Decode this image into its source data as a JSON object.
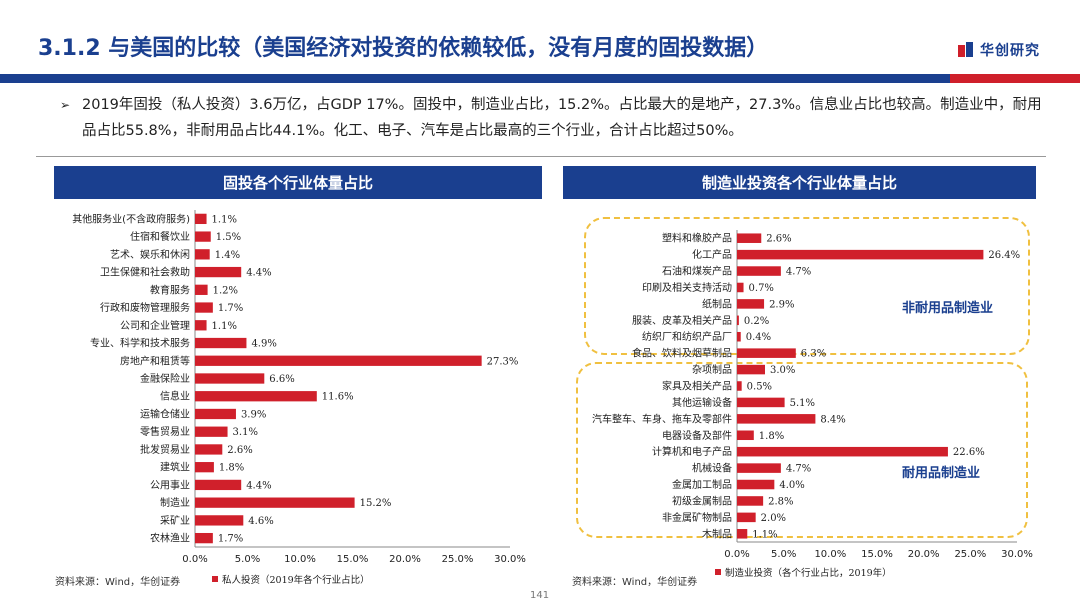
{
  "header": {
    "title": "3.1.2 与美国的比较（美国经济对投资的依赖较低，没有月度的固投数据）",
    "logo_text": "华创研究"
  },
  "summary": {
    "bullet": "➢",
    "text": "2019年固投（私人投资）3.6万亿，占GDP 17%。固投中，制造业占比，15.2%。占比最大的是地产，27.3%。信息业占比也较高。制造业中，耐用品占比55.8%，非耐用品占比44.1%。化工、电子、汽车是占比最高的三个行业，合计占比超过50%。"
  },
  "colors": {
    "primary": "#1a3f8f",
    "bar": "#d0202b",
    "box": "#f0c040"
  },
  "chart_data": [
    {
      "type": "bar",
      "orientation": "horizontal",
      "title": "固投各个行业体量占比",
      "categories": [
        "其他服务业(不含政府服务)",
        "住宿和餐饮业",
        "艺术、娱乐和休闲",
        "卫生保健和社会救助",
        "教育服务",
        "行政和废物管理服务",
        "公司和企业管理",
        "专业、科学和技术服务",
        "房地产和租赁等",
        "金融保险业",
        "信息业",
        "运输仓储业",
        "零售贸易业",
        "批发贸易业",
        "建筑业",
        "公用事业",
        "制造业",
        "采矿业",
        "农林渔业"
      ],
      "series": [
        {
          "name": "私人投资（2019年各个行业占比）",
          "values": [
            1.1,
            1.5,
            1.4,
            4.4,
            1.2,
            1.7,
            1.1,
            4.9,
            27.3,
            6.6,
            11.6,
            3.9,
            3.1,
            2.6,
            1.8,
            4.4,
            15.2,
            4.6,
            1.7
          ]
        }
      ],
      "value_labels": [
        "1.1%",
        "1.5%",
        "1.4%",
        "4.4%",
        "1.2%",
        "1.7%",
        "1.1%",
        "4.9%",
        "27.3%",
        "6.6%",
        "11.6%",
        "3.9%",
        "3.1%",
        "2.6%",
        "1.8%",
        "4.4%",
        "15.2%",
        "4.6%",
        "1.7%"
      ],
      "xlim": [
        0,
        30
      ],
      "xticks": [
        "0.0%",
        "5.0%",
        "10.0%",
        "15.0%",
        "20.0%",
        "25.0%",
        "30.0%"
      ],
      "legend": "bottom",
      "source": "资料来源：Wind，华创证券"
    },
    {
      "type": "bar",
      "orientation": "horizontal",
      "title": "制造业投资各个行业体量占比",
      "categories": [
        "塑料和橡胶产品",
        "化工产品",
        "石油和煤炭产品",
        "印刷及相关支持活动",
        "纸制品",
        "服装、皮革及相关产品",
        "纺织厂和纺织产品厂",
        "食品、饮料及烟草制品",
        "杂项制品",
        "家具及相关产品",
        "其他运输设备",
        "汽车整车、车身、拖车及零部件",
        "电器设备及部件",
        "计算机和电子产品",
        "机械设备",
        "金属加工制品",
        "初级金属制品",
        "非金属矿物制品",
        "木制品"
      ],
      "series": [
        {
          "name": "制造业投资（各个行业占比，2019年）",
          "values": [
            2.6,
            26.4,
            4.7,
            0.7,
            2.9,
            0.2,
            0.4,
            6.3,
            3.0,
            0.5,
            5.1,
            8.4,
            1.8,
            22.6,
            4.7,
            4.0,
            2.8,
            2.0,
            1.1
          ]
        }
      ],
      "value_labels": [
        "2.6%",
        "26.4%",
        "4.7%",
        "0.7%",
        "2.9%",
        "0.2%",
        "0.4%",
        "6.3%",
        "3.0%",
        "0.5%",
        "5.1%",
        "8.4%",
        "1.8%",
        "22.6%",
        "4.7%",
        "4.0%",
        "2.8%",
        "2.0%",
        "1.1%"
      ],
      "xlim": [
        0,
        30
      ],
      "xticks": [
        "0.0%",
        "5.0%",
        "10.0%",
        "15.0%",
        "20.0%",
        "25.0%",
        "30.0%"
      ],
      "groups": [
        {
          "label": "非耐用品制造业",
          "from": 0,
          "to": 7
        },
        {
          "label": "耐用品制造业",
          "from": 8,
          "to": 18
        }
      ],
      "legend": "bottom",
      "source": "资料来源：Wind，华创证券"
    }
  ],
  "footer": {
    "page": "141"
  }
}
